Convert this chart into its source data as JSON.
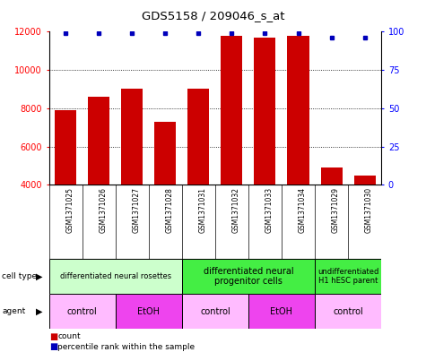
{
  "title": "GDS5158 / 209046_s_at",
  "samples": [
    "GSM1371025",
    "GSM1371026",
    "GSM1371027",
    "GSM1371028",
    "GSM1371031",
    "GSM1371032",
    "GSM1371033",
    "GSM1371034",
    "GSM1371029",
    "GSM1371030"
  ],
  "counts": [
    7900,
    8600,
    9000,
    7300,
    9000,
    11800,
    11700,
    11800,
    4900,
    4500
  ],
  "percentiles": [
    99,
    99,
    99,
    99,
    99,
    99,
    99,
    99,
    96,
    96
  ],
  "ylim_left": [
    4000,
    12000
  ],
  "ylim_right": [
    0,
    100
  ],
  "yticks_left": [
    4000,
    6000,
    8000,
    10000,
    12000
  ],
  "yticks_right": [
    0,
    25,
    50,
    75,
    100
  ],
  "bar_color": "#cc0000",
  "dot_color": "#0000bb",
  "cell_type_groups": [
    {
      "label": "differentiated neural rosettes",
      "start": 0,
      "end": 4,
      "color": "#ccffcc",
      "fontsize": 6
    },
    {
      "label": "differentiated neural\nprogenitor cells",
      "start": 4,
      "end": 8,
      "color": "#44ee44",
      "fontsize": 7
    },
    {
      "label": "undifferentiated\nH1 hESC parent",
      "start": 8,
      "end": 10,
      "color": "#44ee44",
      "fontsize": 6
    }
  ],
  "agent_groups": [
    {
      "label": "control",
      "start": 0,
      "end": 2,
      "color": "#ffbbff"
    },
    {
      "label": "EtOH",
      "start": 2,
      "end": 4,
      "color": "#ee44ee"
    },
    {
      "label": "control",
      "start": 4,
      "end": 6,
      "color": "#ffbbff"
    },
    {
      "label": "EtOH",
      "start": 6,
      "end": 8,
      "color": "#ee44ee"
    },
    {
      "label": "control",
      "start": 8,
      "end": 10,
      "color": "#ffbbff"
    }
  ],
  "bg_color": "#ffffff",
  "sample_bg_color": "#cccccc"
}
